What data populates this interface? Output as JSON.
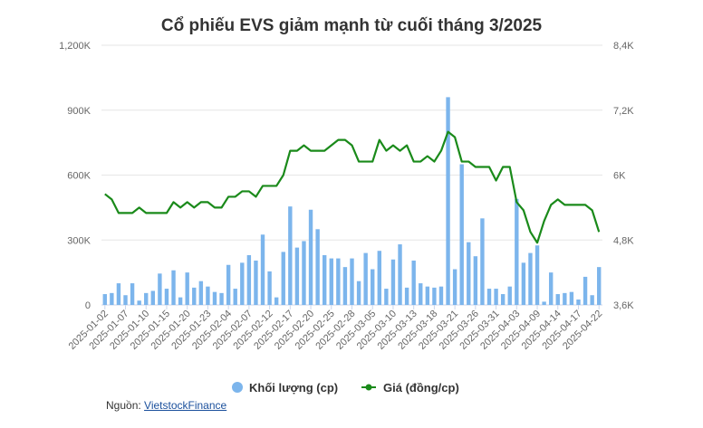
{
  "chart_data": {
    "type": "bar+line",
    "title": "Cổ phiếu EVS giảm mạnh từ cuối tháng 3/2025",
    "x_tick_labels": [
      "2025-01-02",
      "2025-01-07",
      "2025-01-10",
      "2025-01-15",
      "2025-01-20",
      "2025-01-23",
      "2025-02-04",
      "2025-02-07",
      "2025-02-12",
      "2025-02-17",
      "2025-02-20",
      "2025-02-25",
      "2025-02-28",
      "2025-03-05",
      "2025-03-10",
      "2025-03-13",
      "2025-03-18",
      "2025-03-21",
      "2025-03-26",
      "2025-03-31",
      "2025-04-03",
      "2025-04-09",
      "2025-04-14",
      "2025-04-17",
      "2025-04-22"
    ],
    "left_axis": {
      "ticks": [
        "0",
        "300K",
        "600K",
        "900K",
        "1,200K"
      ],
      "ylim": [
        0,
        1200000
      ]
    },
    "right_axis": {
      "ticks": [
        "3,6K",
        "4,8K",
        "6K",
        "7,2K",
        "8,4K"
      ],
      "ylim": [
        3600,
        8400
      ]
    },
    "series": [
      {
        "name": "Khối lượng (cp)",
        "type": "bar",
        "color": "#7cb5ec",
        "values": [
          50000,
          55000,
          100000,
          45000,
          100000,
          20000,
          55000,
          65000,
          145000,
          75000,
          160000,
          35000,
          150000,
          80000,
          110000,
          85000,
          60000,
          55000,
          185000,
          75000,
          195000,
          230000,
          205000,
          325000,
          155000,
          35000,
          245000,
          455000,
          265000,
          295000,
          440000,
          350000,
          230000,
          215000,
          215000,
          175000,
          215000,
          110000,
          240000,
          165000,
          250000,
          75000,
          210000,
          280000,
          80000,
          205000,
          100000,
          85000,
          80000,
          85000,
          960000,
          165000,
          650000,
          290000,
          225000,
          400000,
          75000,
          75000,
          50000,
          85000,
          490000,
          195000,
          240000,
          275000,
          15000,
          150000,
          50000,
          55000,
          60000,
          25000,
          130000,
          45000,
          175000
        ]
      },
      {
        "name": "Giá (đồng/cp)",
        "type": "line",
        "color": "#1a8a1a",
        "values": [
          5650,
          5550,
          5300,
          5300,
          5300,
          5400,
          5300,
          5300,
          5300,
          5300,
          5500,
          5400,
          5500,
          5400,
          5500,
          5500,
          5400,
          5400,
          5600,
          5600,
          5700,
          5700,
          5600,
          5800,
          5800,
          5800,
          6000,
          6450,
          6450,
          6550,
          6450,
          6450,
          6450,
          6550,
          6650,
          6650,
          6550,
          6250,
          6250,
          6250,
          6650,
          6450,
          6550,
          6450,
          6550,
          6250,
          6250,
          6350,
          6250,
          6450,
          6800,
          6700,
          6250,
          6250,
          6150,
          6150,
          6150,
          5900,
          6150,
          6150,
          5500,
          5350,
          4950,
          4750,
          5150,
          5450,
          5550,
          5450,
          5450,
          5450,
          5450,
          5350,
          4950
        ]
      }
    ]
  },
  "legend": {
    "volume_label": "Khối lượng (cp)",
    "price_label": "Giá (đồng/cp)"
  },
  "source": {
    "prefix": "Nguồn:",
    "link_text": "VietstockFinance"
  },
  "colors": {
    "bar": "#7cb5ec",
    "line": "#1a8a1a",
    "grid": "#e6e6e6"
  }
}
